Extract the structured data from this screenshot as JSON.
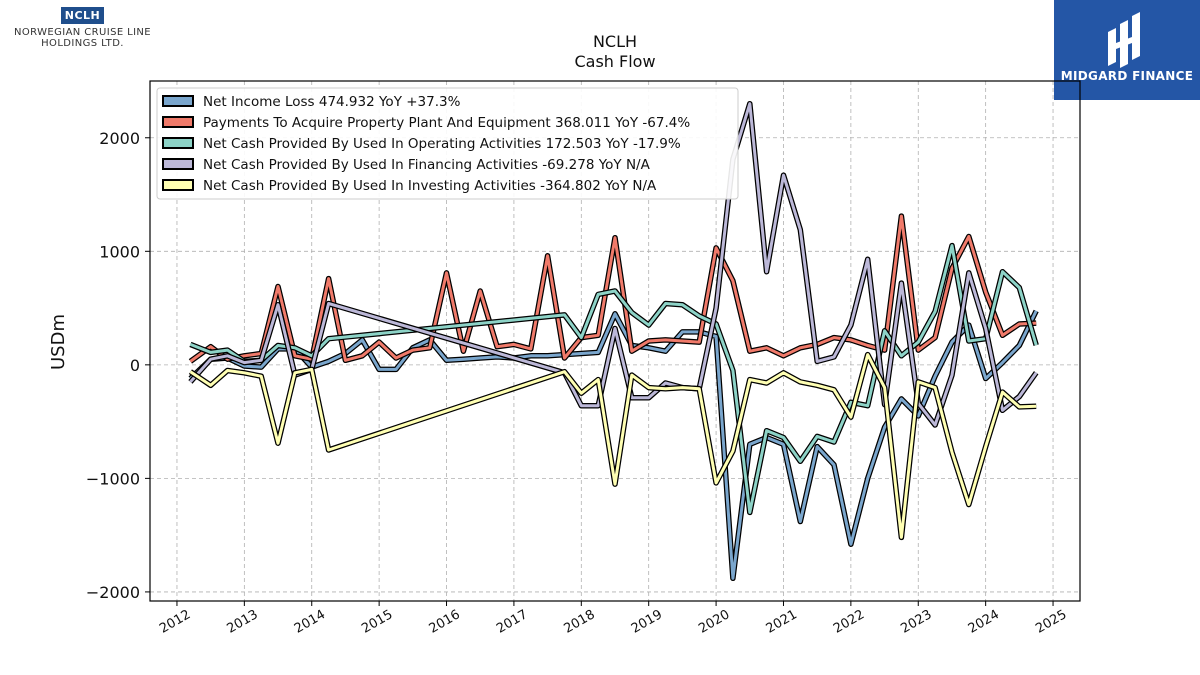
{
  "logos": {
    "left_mark": "NCLH",
    "left_name_line1": "NORWEGIAN CRUISE LINE",
    "left_name_line2": "HOLDINGS LTD.",
    "right_brand": "MIDGARD FINANCE"
  },
  "chart_data": {
    "type": "line",
    "title": "NCLH",
    "subtitle": "Cash Flow",
    "xlabel": "",
    "ylabel": "USDm",
    "xlim": [
      2011.6,
      2025.4
    ],
    "ylim": [
      -2080,
      2500
    ],
    "x_ticks": [
      "2012",
      "2013",
      "2014",
      "2015",
      "2016",
      "2017",
      "2018",
      "2019",
      "2020",
      "2021",
      "2022",
      "2023",
      "2024",
      "2025"
    ],
    "y_ticks": [
      -2000,
      -1000,
      0,
      1000,
      2000
    ],
    "grid": true,
    "legend_position": "top-left",
    "series": [
      {
        "name": "Net Income Loss  474.932 YoY +37.3%",
        "color": "#7aa6cd",
        "points": [
          [
            2012.2,
            -120
          ],
          [
            2012.5,
            50
          ],
          [
            2012.75,
            60
          ],
          [
            2013.0,
            -10
          ],
          [
            2013.25,
            -20
          ],
          [
            2013.5,
            140
          ],
          [
            2013.75,
            140
          ],
          [
            2014.0,
            -20
          ],
          [
            2014.25,
            30
          ],
          [
            2014.5,
            100
          ],
          [
            2014.75,
            220
          ],
          [
            2015.0,
            -40
          ],
          [
            2015.25,
            -40
          ],
          [
            2015.5,
            150
          ],
          [
            2015.75,
            220
          ],
          [
            2016.0,
            40
          ],
          [
            2016.25,
            50
          ],
          [
            2016.5,
            60
          ],
          [
            2016.75,
            70
          ],
          [
            2017.0,
            60
          ],
          [
            2017.25,
            80
          ],
          [
            2017.5,
            80
          ],
          [
            2017.75,
            90
          ],
          [
            2018.0,
            100
          ],
          [
            2018.25,
            110
          ],
          [
            2018.5,
            450
          ],
          [
            2018.75,
            170
          ],
          [
            2019.0,
            150
          ],
          [
            2019.25,
            120
          ],
          [
            2019.5,
            290
          ],
          [
            2019.75,
            290
          ],
          [
            2020.0,
            250
          ],
          [
            2020.25,
            -1880
          ],
          [
            2020.5,
            -700
          ],
          [
            2020.75,
            -640
          ],
          [
            2021.0,
            -700
          ],
          [
            2021.25,
            -1380
          ],
          [
            2021.5,
            -720
          ],
          [
            2021.75,
            -880
          ],
          [
            2022.0,
            -1580
          ],
          [
            2022.25,
            -1000
          ],
          [
            2022.5,
            -550
          ],
          [
            2022.75,
            -300
          ],
          [
            2023.0,
            -450
          ],
          [
            2023.25,
            -100
          ],
          [
            2023.5,
            200
          ],
          [
            2023.75,
            350
          ],
          [
            2024.0,
            -120
          ],
          [
            2024.25,
            20
          ],
          [
            2024.5,
            170
          ],
          [
            2024.75,
            475
          ]
        ]
      },
      {
        "name": "Payments To Acquire Property Plant And Equipment  368.011 YoY -67.4%",
        "color": "#f07a6a",
        "points": [
          [
            2012.2,
            30
          ],
          [
            2012.5,
            160
          ],
          [
            2012.75,
            50
          ],
          [
            2013.0,
            80
          ],
          [
            2013.25,
            100
          ],
          [
            2013.5,
            690
          ],
          [
            2013.75,
            80
          ],
          [
            2014.0,
            50
          ],
          [
            2014.25,
            760
          ],
          [
            2014.5,
            40
          ],
          [
            2014.75,
            80
          ],
          [
            2015.0,
            200
          ],
          [
            2015.25,
            60
          ],
          [
            2015.5,
            130
          ],
          [
            2015.75,
            150
          ],
          [
            2016.0,
            810
          ],
          [
            2016.25,
            120
          ],
          [
            2016.5,
            650
          ],
          [
            2016.75,
            160
          ],
          [
            2017.0,
            180
          ],
          [
            2017.25,
            140
          ],
          [
            2017.5,
            960
          ],
          [
            2017.75,
            60
          ],
          [
            2018.0,
            240
          ],
          [
            2018.25,
            260
          ],
          [
            2018.5,
            1120
          ],
          [
            2018.75,
            120
          ],
          [
            2019.0,
            210
          ],
          [
            2019.25,
            220
          ],
          [
            2019.5,
            210
          ],
          [
            2019.75,
            200
          ],
          [
            2020.0,
            1030
          ],
          [
            2020.25,
            740
          ],
          [
            2020.5,
            120
          ],
          [
            2020.75,
            150
          ],
          [
            2021.0,
            80
          ],
          [
            2021.25,
            150
          ],
          [
            2021.5,
            180
          ],
          [
            2021.75,
            240
          ],
          [
            2022.0,
            220
          ],
          [
            2022.25,
            170
          ],
          [
            2022.5,
            130
          ],
          [
            2022.75,
            1310
          ],
          [
            2023.0,
            130
          ],
          [
            2023.25,
            240
          ],
          [
            2023.5,
            850
          ],
          [
            2023.75,
            1130
          ],
          [
            2024.0,
            640
          ],
          [
            2024.25,
            260
          ],
          [
            2024.5,
            360
          ],
          [
            2024.75,
            368
          ]
        ]
      },
      {
        "name": "Net Cash Provided By Used In Operating Activities  172.503 YoY -17.9%",
        "color": "#8dd3c7",
        "points": [
          [
            2012.2,
            180
          ],
          [
            2012.5,
            110
          ],
          [
            2012.75,
            130
          ],
          [
            2013.0,
            30
          ],
          [
            2013.25,
            40
          ],
          [
            2013.5,
            170
          ],
          [
            2013.75,
            150
          ],
          [
            2014.0,
            80
          ],
          [
            2014.25,
            230
          ],
          [
            2017.75,
            440
          ],
          [
            2018.0,
            240
          ],
          [
            2018.25,
            620
          ],
          [
            2018.5,
            650
          ],
          [
            2018.75,
            460
          ],
          [
            2019.0,
            350
          ],
          [
            2019.25,
            540
          ],
          [
            2019.5,
            530
          ],
          [
            2019.75,
            430
          ],
          [
            2020.0,
            360
          ],
          [
            2020.25,
            -50
          ],
          [
            2020.5,
            -1300
          ],
          [
            2020.75,
            -580
          ],
          [
            2021.0,
            -640
          ],
          [
            2021.25,
            -850
          ],
          [
            2021.5,
            -630
          ],
          [
            2021.75,
            -680
          ],
          [
            2022.0,
            -330
          ],
          [
            2022.25,
            -360
          ],
          [
            2022.5,
            300
          ],
          [
            2022.75,
            80
          ],
          [
            2023.0,
            200
          ],
          [
            2023.25,
            470
          ],
          [
            2023.5,
            1050
          ],
          [
            2023.75,
            210
          ],
          [
            2024.0,
            230
          ],
          [
            2024.25,
            820
          ],
          [
            2024.5,
            680
          ],
          [
            2024.75,
            173
          ]
        ]
      },
      {
        "name": "Net Cash Provided By Used In Financing Activities  -69.278 YoY N/A",
        "color": "#bcb8d8",
        "points": [
          [
            2012.2,
            -150
          ],
          [
            2012.5,
            50
          ],
          [
            2012.75,
            80
          ],
          [
            2013.0,
            20
          ],
          [
            2013.25,
            40
          ],
          [
            2013.5,
            530
          ],
          [
            2013.75,
            -90
          ],
          [
            2014.0,
            -40
          ],
          [
            2014.25,
            540
          ],
          [
            2017.75,
            -70
          ],
          [
            2018.0,
            -360
          ],
          [
            2018.25,
            -360
          ],
          [
            2018.5,
            320
          ],
          [
            2018.75,
            -290
          ],
          [
            2019.0,
            -290
          ],
          [
            2019.25,
            -160
          ],
          [
            2019.5,
            -200
          ],
          [
            2019.75,
            -210
          ],
          [
            2020.0,
            500
          ],
          [
            2020.25,
            1810
          ],
          [
            2020.5,
            2300
          ],
          [
            2020.75,
            820
          ],
          [
            2021.0,
            1670
          ],
          [
            2021.25,
            1190
          ],
          [
            2021.5,
            30
          ],
          [
            2021.75,
            70
          ],
          [
            2022.0,
            350
          ],
          [
            2022.25,
            930
          ],
          [
            2022.5,
            -350
          ],
          [
            2022.75,
            720
          ],
          [
            2023.0,
            -340
          ],
          [
            2023.25,
            -530
          ],
          [
            2023.5,
            -90
          ],
          [
            2023.75,
            810
          ],
          [
            2024.0,
            320
          ],
          [
            2024.25,
            -400
          ],
          [
            2024.5,
            -280
          ],
          [
            2024.75,
            -69
          ]
        ]
      },
      {
        "name": "Net Cash Provided By Used In Investing Activities  -364.802 YoY N/A",
        "color": "#ffffb3",
        "points": [
          [
            2012.2,
            -60
          ],
          [
            2012.5,
            -180
          ],
          [
            2012.75,
            -50
          ],
          [
            2013.0,
            -70
          ],
          [
            2013.25,
            -100
          ],
          [
            2013.5,
            -690
          ],
          [
            2013.75,
            -70
          ],
          [
            2014.0,
            -40
          ],
          [
            2014.25,
            -750
          ],
          [
            2017.75,
            -60
          ],
          [
            2018.0,
            -250
          ],
          [
            2018.25,
            -130
          ],
          [
            2018.5,
            -1050
          ],
          [
            2018.75,
            -90
          ],
          [
            2019.0,
            -200
          ],
          [
            2019.25,
            -210
          ],
          [
            2019.5,
            -200
          ],
          [
            2019.75,
            -210
          ],
          [
            2020.0,
            -1040
          ],
          [
            2020.25,
            -760
          ],
          [
            2020.5,
            -130
          ],
          [
            2020.75,
            -160
          ],
          [
            2021.0,
            -70
          ],
          [
            2021.25,
            -150
          ],
          [
            2021.5,
            -180
          ],
          [
            2021.75,
            -220
          ],
          [
            2022.0,
            -460
          ],
          [
            2022.25,
            90
          ],
          [
            2022.5,
            -200
          ],
          [
            2022.75,
            -1520
          ],
          [
            2023.0,
            -150
          ],
          [
            2023.25,
            -200
          ],
          [
            2023.5,
            -770
          ],
          [
            2023.75,
            -1230
          ],
          [
            2024.0,
            -720
          ],
          [
            2024.25,
            -240
          ],
          [
            2024.5,
            -370
          ],
          [
            2024.75,
            -365
          ]
        ]
      }
    ]
  }
}
